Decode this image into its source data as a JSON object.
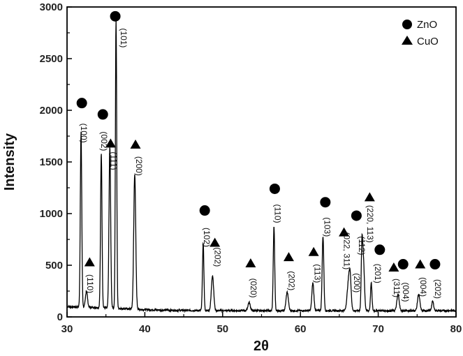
{
  "chart_data": {
    "type": "line",
    "title": "",
    "xlabel": "2θ",
    "ylabel": "Intensity",
    "xlim": [
      30,
      80
    ],
    "ylim": [
      0,
      3000
    ],
    "x_ticks": [
      30,
      40,
      50,
      60,
      70,
      80
    ],
    "y_ticks": [
      0,
      500,
      1000,
      1500,
      2000,
      2500,
      3000
    ],
    "grid": false,
    "legend": {
      "placement": "top-right",
      "entries": [
        {
          "label": "ZnO",
          "marker": "circle"
        },
        {
          "label": "CuO",
          "marker": "triangle"
        }
      ]
    },
    "peaks": [
      {
        "x": 31.8,
        "y": 1690,
        "width": 0.22,
        "label": "(100)",
        "phase": "ZnO",
        "marker_x": 31.9,
        "marker_y": 2070,
        "label_x": 31.8,
        "label_y": 1780
      },
      {
        "x": 32.5,
        "y": 160,
        "width": 0.3,
        "label": "(110)",
        "phase": "CuO",
        "marker_x": 32.9,
        "marker_y": 530,
        "label_x": 32.6,
        "label_y": 320
      },
      {
        "x": 34.4,
        "y": 1500,
        "width": 0.22,
        "label": "(002)",
        "phase": "ZnO",
        "marker_x": 34.6,
        "marker_y": 1960,
        "label_x": 34.4,
        "label_y": 1700
      },
      {
        "x": 35.5,
        "y": 1560,
        "width": 0.25,
        "label": "(111)",
        "phase": "CuO",
        "marker_x": 35.6,
        "marker_y": 1680,
        "label_x": 35.6,
        "label_y": 1510
      },
      {
        "x": 36.3,
        "y": 2800,
        "width": 0.2,
        "label": "(101)",
        "phase": "ZnO",
        "marker_x": 36.2,
        "marker_y": 2910,
        "label_x": 36.9,
        "label_y": 2700
      },
      {
        "x": 38.7,
        "y": 1310,
        "width": 0.3,
        "label": "(200)",
        "phase": "CuO",
        "marker_x": 38.8,
        "marker_y": 1670,
        "label_x": 38.9,
        "label_y": 1460
      },
      {
        "x": 47.5,
        "y": 650,
        "width": 0.22,
        "label": "(102)",
        "phase": "ZnO",
        "marker_x": 47.7,
        "marker_y": 1030,
        "label_x": 47.6,
        "label_y": 770
      },
      {
        "x": 48.7,
        "y": 340,
        "width": 0.35,
        "label": "(202)",
        "phase": "CuO",
        "marker_x": 49.0,
        "marker_y": 720,
        "label_x": 49.0,
        "label_y": 580
      },
      {
        "x": 53.4,
        "y": 80,
        "width": 0.35,
        "label": "(020)",
        "phase": "CuO",
        "marker_x": 53.6,
        "marker_y": 520,
        "label_x": 53.6,
        "label_y": 280
      },
      {
        "x": 56.6,
        "y": 820,
        "width": 0.22,
        "label": "(110)",
        "phase": "ZnO",
        "marker_x": 56.7,
        "marker_y": 1240,
        "label_x": 56.7,
        "label_y": 1000
      },
      {
        "x": 58.3,
        "y": 180,
        "width": 0.35,
        "label": "(202)",
        "phase": "CuO",
        "marker_x": 58.5,
        "marker_y": 580,
        "label_x": 58.5,
        "label_y": 350
      },
      {
        "x": 61.6,
        "y": 270,
        "width": 0.3,
        "label": "(113)",
        "phase": "CuO",
        "marker_x": 61.7,
        "marker_y": 630,
        "label_x": 61.8,
        "label_y": 420
      },
      {
        "x": 62.9,
        "y": 720,
        "width": 0.25,
        "label": "(103)",
        "phase": "ZnO",
        "marker_x": 63.2,
        "marker_y": 1110,
        "label_x": 63.1,
        "label_y": 870
      },
      {
        "x": 66.2,
        "y": 280,
        "width": 0.45,
        "label": "(022, 311)",
        "phase": "CuO",
        "marker_x": 65.6,
        "marker_y": 820,
        "label_x": 65.6,
        "label_y": 640
      },
      {
        "x": 66.4,
        "y": 220,
        "width": 0.3,
        "label": "(200)",
        "phase": "ZnO",
        "marker_x": null,
        "marker_y": null,
        "label_x": 66.9,
        "label_y": 330
      },
      {
        "x": 67.9,
        "y": 570,
        "width": 0.22,
        "label": "(112)",
        "phase": "ZnO",
        "marker_x": 67.2,
        "marker_y": 980,
        "label_x": 67.5,
        "label_y": 690
      },
      {
        "x": 68.1,
        "y": 480,
        "width": 0.3,
        "label": "(220, 113)",
        "phase": "CuO",
        "marker_x": 68.9,
        "marker_y": 1160,
        "label_x": 68.6,
        "label_y": 900
      },
      {
        "x": 69.1,
        "y": 270,
        "width": 0.22,
        "label": "(201)",
        "phase": "ZnO",
        "marker_x": 70.2,
        "marker_y": 650,
        "label_x": 69.6,
        "label_y": 420
      },
      {
        "x": 72.5,
        "y": 90,
        "width": 0.35,
        "label": "(311)",
        "phase": "CuO",
        "marker_x": 72.0,
        "marker_y": 480,
        "label_x": 72.0,
        "label_y": 280
      },
      {
        "x": 72.6,
        "y": 80,
        "width": 0.3,
        "label": "(004)",
        "phase": "ZnO",
        "marker_x": 73.2,
        "marker_y": 510,
        "label_x": 73.2,
        "label_y": 240
      },
      {
        "x": 75.2,
        "y": 160,
        "width": 0.35,
        "label": "(004)",
        "phase": "CuO",
        "marker_x": 75.4,
        "marker_y": 510,
        "label_x": 75.4,
        "label_y": 290
      },
      {
        "x": 77.0,
        "y": 90,
        "width": 0.3,
        "label": "(202)",
        "phase": "ZnO",
        "marker_x": 77.3,
        "marker_y": 510,
        "label_x": 77.3,
        "label_y": 270
      }
    ]
  }
}
